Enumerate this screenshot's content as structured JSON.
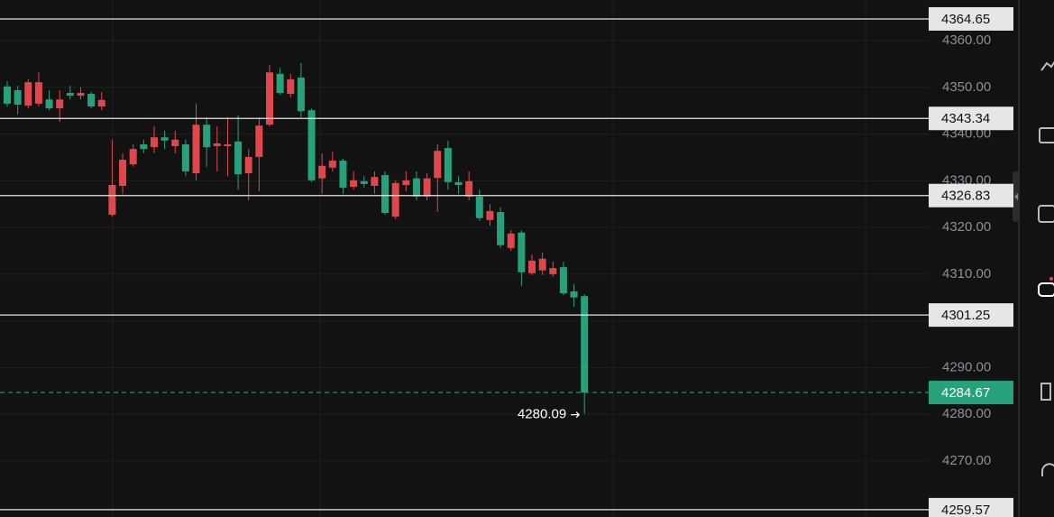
{
  "chart_data": {
    "type": "candlestick",
    "up_color": "#e0474c",
    "down_color": "#26a17b",
    "open": [
      4350.2,
      4349.4,
      4346.1,
      4346.5,
      4347.4,
      4345.5,
      4348.8,
      4348.2,
      4348.6,
      4345.9,
      4322.7,
      4328.9,
      4333.5,
      4337.8,
      4337.2,
      4339.3,
      4337.4,
      4337.8,
      4331.6,
      4342.0,
      4337.4,
      4337.4,
      4338.4,
      4331.6,
      4335.1,
      4342.0,
      4352.9,
      4348.6,
      4352.1,
      4345.1,
      4330.5,
      4332.8,
      4334.3,
      4328.7,
      4329.9,
      4328.9,
      4331.2,
      4322.3,
      4329.1,
      4330.5,
      4326.6,
      4330.6,
      4337.0,
      4329.7,
      4326.6,
      4326.6,
      4321.6,
      4323.3,
      4315.6,
      4318.9,
      4310.2,
      4310.8,
      4310.0,
      4311.5,
      4306.3,
      4305.3
    ],
    "high": [
      4351.3,
      4350.3,
      4351.7,
      4353.2,
      4349.4,
      4349.4,
      4350.3,
      4350.0,
      4349.0,
      4349.0,
      4338.8,
      4335.9,
      4337.8,
      4338.8,
      4341.7,
      4340.7,
      4340.7,
      4338.8,
      4346.5,
      4343.6,
      4341.7,
      4343.6,
      4344.0,
      4336.8,
      4343.6,
      4354.8,
      4354.2,
      4352.9,
      4355.2,
      4345.5,
      4335.9,
      4336.2,
      4334.7,
      4332.0,
      4331.0,
      4332.0,
      4332.0,
      4330.1,
      4332.0,
      4332.0,
      4331.6,
      4337.8,
      4338.6,
      4331.0,
      4332.0,
      4328.1,
      4325.0,
      4324.3,
      4319.4,
      4319.4,
      4314.2,
      4314.6,
      4312.7,
      4312.7,
      4307.9,
      4305.7
    ],
    "low": [
      4345.9,
      4344.2,
      4345.5,
      4345.9,
      4345.1,
      4342.6,
      4347.4,
      4347.4,
      4345.5,
      4345.1,
      4322.3,
      4327.2,
      4333.0,
      4335.9,
      4335.9,
      4336.8,
      4335.9,
      4331.0,
      4330.1,
      4333.0,
      4332.0,
      4331.0,
      4328.1,
      4325.8,
      4327.7,
      4341.7,
      4348.4,
      4347.8,
      4343.6,
      4329.7,
      4327.2,
      4332.0,
      4327.2,
      4328.1,
      4328.5,
      4327.2,
      4322.7,
      4321.8,
      4327.7,
      4325.8,
      4325.8,
      4323.3,
      4328.1,
      4327.2,
      4325.8,
      4321.4,
      4320.4,
      4315.6,
      4315.0,
      4307.5,
      4309.8,
      4309.8,
      4309.4,
      4305.5,
      4303.0,
      4280.09
    ],
    "close": [
      4346.5,
      4346.3,
      4351.1,
      4351.1,
      4345.5,
      4347.4,
      4348.2,
      4348.8,
      4345.9,
      4347.3,
      4329.1,
      4334.5,
      4336.8,
      4336.8,
      4339.3,
      4338.6,
      4338.8,
      4332.0,
      4342.0,
      4337.2,
      4338.0,
      4337.8,
      4331.4,
      4335.1,
      4341.8,
      4353.2,
      4348.8,
      4351.7,
      4344.9,
      4330.1,
      4333.2,
      4334.3,
      4328.5,
      4330.1,
      4329.3,
      4330.8,
      4323.1,
      4329.5,
      4330.1,
      4326.6,
      4330.5,
      4336.4,
      4329.7,
      4329.1,
      4329.9,
      4322.0,
      4323.5,
      4316.2,
      4318.7,
      4310.4,
      4312.9,
      4313.3,
      4311.3,
      4305.9,
      4305.0,
      4284.67
    ],
    "levels": [
      4364.65,
      4343.34,
      4326.83,
      4301.25,
      4259.57
    ],
    "level_color": "#e6e6e6",
    "last_price": 4284.67,
    "last_price_color": "#26a17b",
    "low_marker": 4280.09,
    "ylim": [
      4258.0,
      4368.7
    ],
    "yticks": [
      {
        "value": 4270,
        "label": "4270.00"
      },
      {
        "value": 4280,
        "label": "4280.00"
      },
      {
        "value": 4290,
        "label": "4290.00"
      },
      {
        "value": 4300,
        "label": "4300.00"
      },
      {
        "value": 4310,
        "label": "4310.00"
      },
      {
        "value": 4320,
        "label": "4320.00"
      },
      {
        "value": 4330,
        "label": "4330.00"
      },
      {
        "value": 4340,
        "label": "4340.00"
      },
      {
        "value": 4350,
        "label": "4350.00"
      },
      {
        "value": 4360,
        "label": "4360.00"
      }
    ],
    "grid": true
  }
}
